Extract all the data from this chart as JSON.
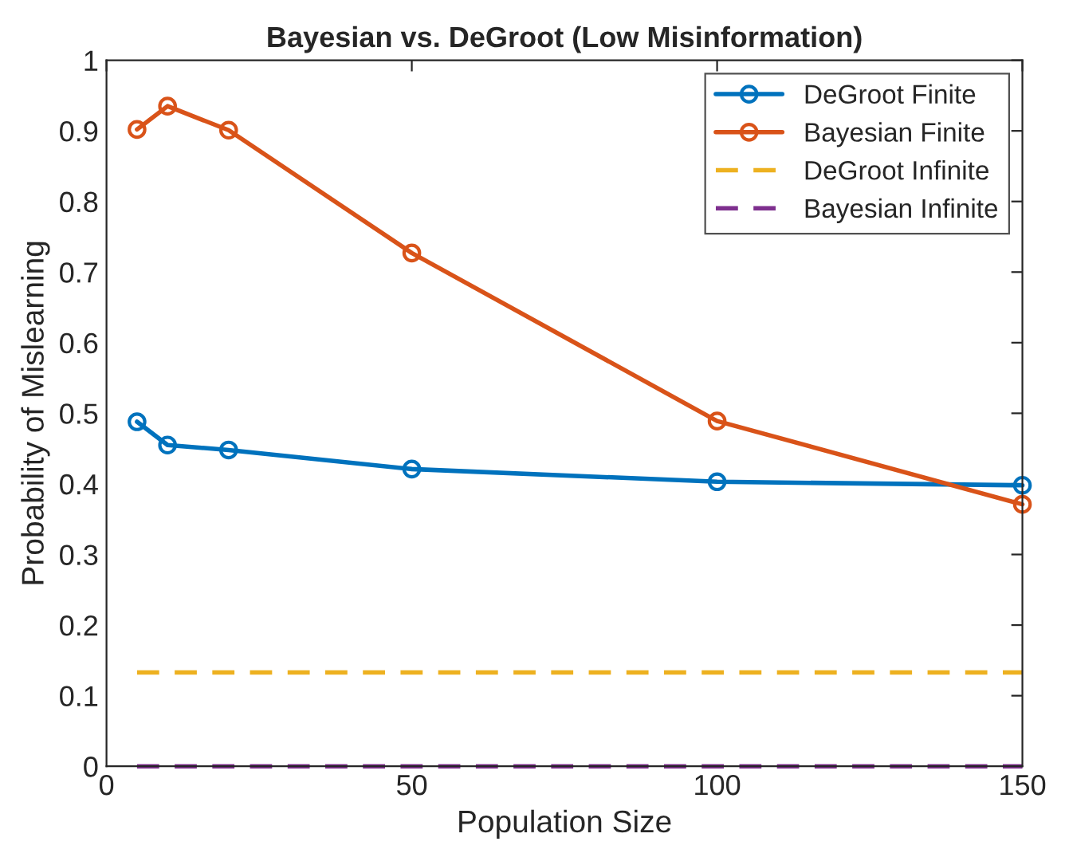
{
  "chart_data": {
    "type": "line",
    "title": "Bayesian vs. DeGroot (Low Misinformation)",
    "xlabel": "Population Size",
    "ylabel": "Probability of Mislearning",
    "x": [
      5,
      10,
      20,
      50,
      100,
      150
    ],
    "series": [
      {
        "name": "DeGroot Finite",
        "color": "#0072bd",
        "marker": "circle",
        "line_style": "solid",
        "values": [
          0.488,
          0.455,
          0.448,
          0.421,
          0.403,
          0.398
        ]
      },
      {
        "name": "Bayesian Finite",
        "color": "#d95319",
        "marker": "circle",
        "line_style": "solid",
        "values": [
          0.902,
          0.935,
          0.901,
          0.727,
          0.489,
          0.371
        ]
      },
      {
        "name": "DeGroot Infinite",
        "color": "#edb120",
        "marker": "none",
        "line_style": "dashed",
        "values": [
          0.133,
          0.133,
          0.133,
          0.133,
          0.133,
          0.133
        ]
      },
      {
        "name": "Bayesian Infinite",
        "color": "#7e2f8e",
        "marker": "none",
        "line_style": "dashed",
        "values": [
          0,
          0,
          0,
          0,
          0,
          0
        ]
      }
    ],
    "xlim": [
      0,
      150
    ],
    "xticks": [
      0,
      50,
      100,
      150
    ],
    "ylim": [
      0,
      1
    ],
    "yticks": [
      0,
      0.1,
      0.2,
      0.3,
      0.4,
      0.5,
      0.6,
      0.7,
      0.8,
      0.9,
      1
    ],
    "grid": false,
    "legend": "top right"
  }
}
